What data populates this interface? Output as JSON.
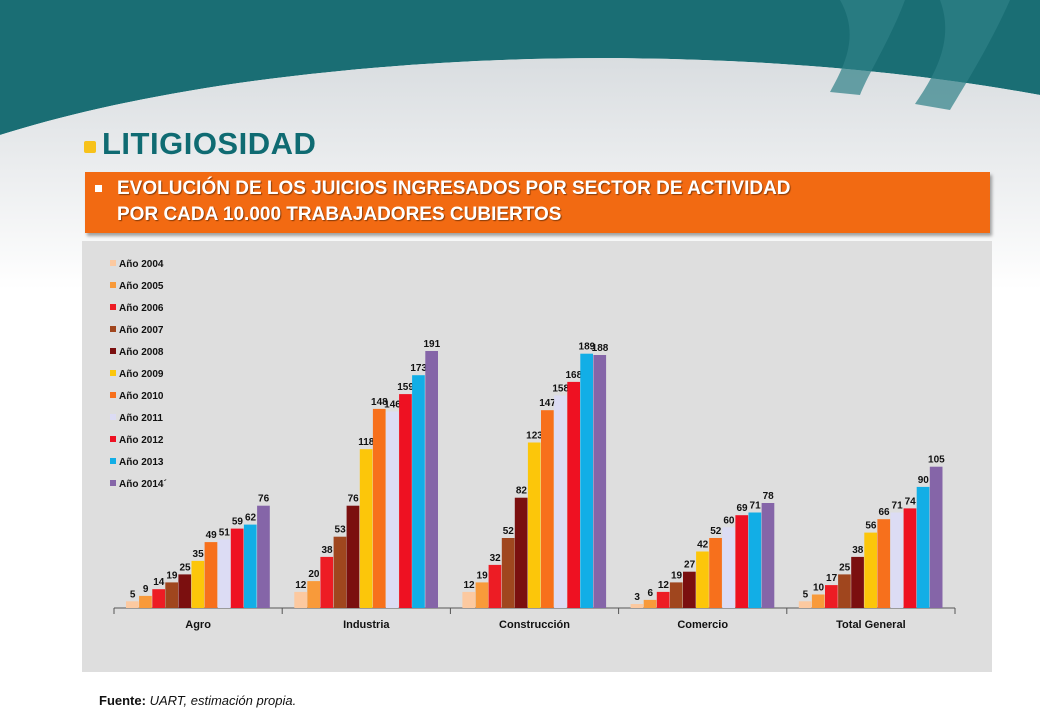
{
  "page": {
    "title": "LITIGIOSIDAD",
    "subtitle_line1": "EVOLUCIÓN DE LOS JUICIOS INGRESADOS POR SECTOR DE ACTIVIDAD",
    "subtitle_line2": "POR CADA 10.000 TRABAJADORES CUBIERTOS",
    "source_label": "Fuente:",
    "source_text": " UART, estimación propia."
  },
  "colors": {
    "header_teal": "#1a6e74",
    "title_teal": "#0f6b72",
    "banner_orange": "#f26a12",
    "bullet_yellow": "#f7c21a",
    "chart_background": "#dedede"
  },
  "chart_data": {
    "type": "bar",
    "categories": [
      "Agro",
      "Industria",
      "Construcción",
      "Comercio",
      "Total General"
    ],
    "series": [
      {
        "name": "Año 2004",
        "color": "#fcc9a0",
        "values": [
          5,
          12,
          12,
          3,
          5
        ]
      },
      {
        "name": "Año 2005",
        "color": "#f89a3a",
        "values": [
          9,
          20,
          19,
          6,
          10
        ]
      },
      {
        "name": "Año 2006",
        "color": "#ed1c24",
        "values": [
          14,
          38,
          32,
          12,
          17
        ]
      },
      {
        "name": "Año 2007",
        "color": "#a0461e",
        "values": [
          19,
          53,
          52,
          19,
          25
        ]
      },
      {
        "name": "Año 2008",
        "color": "#7b0f0f",
        "values": [
          25,
          76,
          82,
          27,
          38
        ]
      },
      {
        "name": "Año 2009",
        "color": "#fcc60a",
        "values": [
          35,
          118,
          123,
          42,
          56
        ]
      },
      {
        "name": "Año 2010",
        "color": "#f7701c",
        "values": [
          49,
          148,
          147,
          52,
          66
        ]
      },
      {
        "name": "Año 2011",
        "color": "#dcdcf4",
        "values": [
          51,
          146,
          158,
          60,
          71
        ]
      },
      {
        "name": "Año 2012",
        "color": "#ee1122",
        "values": [
          59,
          159,
          168,
          69,
          74
        ]
      },
      {
        "name": "Año 2013",
        "color": "#12aee6",
        "values": [
          62,
          173,
          189,
          71,
          90
        ]
      },
      {
        "name": "Año 2014´",
        "color": "#8565a8",
        "values": [
          76,
          191,
          188,
          78,
          105
        ]
      }
    ],
    "ylim": [
      0,
      200
    ],
    "grid": false,
    "legend": "top-left",
    "data_labels": true
  }
}
